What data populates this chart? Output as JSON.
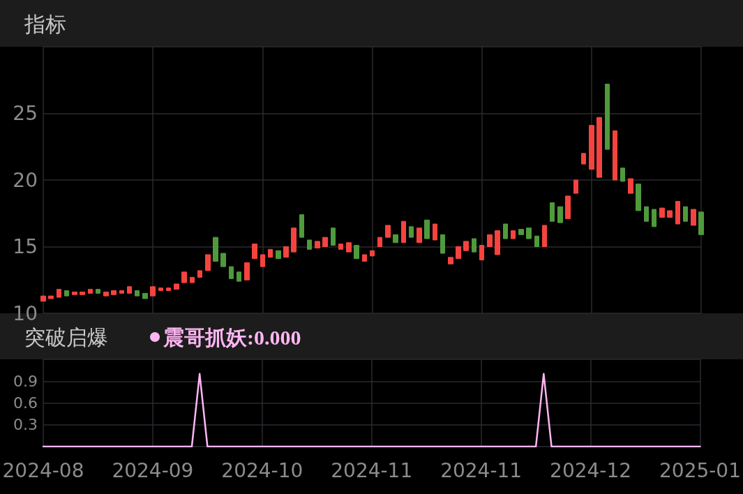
{
  "chart_data": [
    {
      "type": "candlestick",
      "title": "指标",
      "categories": [
        "2024-08",
        null,
        null,
        null,
        null,
        null,
        null,
        null,
        null,
        null,
        null,
        null,
        null,
        null,
        "2024-09",
        null,
        null,
        null,
        null,
        null,
        null,
        null,
        null,
        null,
        null,
        null,
        null,
        null,
        "2024-10",
        null,
        null,
        null,
        null,
        null,
        null,
        null,
        null,
        null,
        null,
        null,
        null,
        null,
        "2024-11",
        null,
        null,
        null,
        null,
        null,
        null,
        null,
        null,
        null,
        null,
        null,
        null,
        null,
        "2024-11",
        null,
        null,
        null,
        null,
        null,
        null,
        null,
        null,
        null,
        null,
        null,
        null,
        null,
        "2024-12",
        null,
        null,
        null,
        null,
        null,
        null,
        null,
        null,
        null,
        null,
        null,
        null,
        null,
        "2025-01"
      ],
      "ohlc": [
        [
          10.9,
          11.3,
          10.9,
          11.3
        ],
        [
          11.1,
          11.3,
          11.1,
          11.3
        ],
        [
          11.2,
          11.8,
          11.2,
          11.8
        ],
        [
          11.7,
          11.7,
          11.3,
          11.3
        ],
        [
          11.4,
          11.6,
          11.4,
          11.6
        ],
        [
          11.4,
          11.6,
          11.4,
          11.6
        ],
        [
          11.5,
          11.8,
          11.5,
          11.8
        ],
        [
          11.8,
          11.8,
          11.5,
          11.5
        ],
        [
          11.3,
          11.6,
          11.3,
          11.6
        ],
        [
          11.4,
          11.7,
          11.4,
          11.7
        ],
        [
          11.5,
          11.7,
          11.5,
          11.7
        ],
        [
          11.5,
          12.0,
          11.5,
          12.0
        ],
        [
          11.7,
          11.7,
          11.3,
          11.3
        ],
        [
          11.5,
          11.5,
          11.1,
          11.1
        ],
        [
          11.3,
          12.0,
          11.3,
          12.0
        ],
        [
          11.7,
          11.9,
          11.7,
          11.9
        ],
        [
          11.7,
          11.9,
          11.7,
          11.9
        ],
        [
          11.8,
          12.2,
          11.8,
          12.2
        ],
        [
          12.3,
          13.1,
          12.3,
          13.1
        ],
        [
          12.3,
          12.7,
          12.3,
          12.7
        ],
        [
          12.7,
          13.2,
          12.7,
          13.2
        ],
        [
          13.2,
          14.4,
          13.2,
          14.4
        ],
        [
          15.7,
          15.7,
          13.9,
          13.9
        ],
        [
          14.5,
          14.5,
          13.5,
          13.5
        ],
        [
          13.5,
          13.5,
          12.6,
          12.6
        ],
        [
          13.1,
          13.1,
          12.4,
          12.4
        ],
        [
          12.5,
          13.8,
          12.5,
          13.8
        ],
        [
          14.1,
          15.2,
          14.1,
          15.2
        ],
        [
          13.5,
          14.4,
          13.5,
          14.4
        ],
        [
          14.2,
          14.8,
          14.2,
          14.8
        ],
        [
          14.7,
          14.7,
          14.1,
          14.1
        ],
        [
          14.2,
          15.0,
          14.2,
          15.0
        ],
        [
          14.6,
          16.4,
          14.6,
          16.4
        ],
        [
          17.4,
          17.4,
          15.7,
          15.7
        ],
        [
          15.5,
          15.5,
          14.8,
          14.8
        ],
        [
          14.9,
          15.4,
          14.9,
          15.4
        ],
        [
          15.0,
          15.7,
          15.0,
          15.7
        ],
        [
          16.4,
          16.4,
          15.1,
          15.1
        ],
        [
          14.8,
          15.2,
          14.8,
          15.2
        ],
        [
          14.6,
          15.3,
          14.6,
          15.3
        ],
        [
          15.1,
          15.1,
          14.1,
          14.1
        ],
        [
          13.9,
          14.4,
          13.9,
          14.4
        ],
        [
          14.3,
          14.7,
          14.3,
          14.7
        ],
        [
          15.0,
          15.7,
          15.0,
          15.7
        ],
        [
          15.7,
          16.6,
          15.7,
          16.6
        ],
        [
          15.9,
          15.9,
          15.3,
          15.3
        ],
        [
          15.3,
          16.9,
          15.3,
          16.9
        ],
        [
          16.5,
          16.5,
          15.7,
          15.7
        ],
        [
          15.3,
          16.4,
          15.3,
          16.4
        ],
        [
          17.0,
          17.0,
          15.6,
          15.6
        ],
        [
          15.5,
          16.7,
          15.5,
          16.7
        ],
        [
          15.9,
          15.9,
          14.5,
          14.5
        ],
        [
          13.7,
          14.2,
          13.7,
          14.2
        ],
        [
          14.1,
          15.0,
          14.1,
          15.0
        ],
        [
          14.7,
          15.4,
          14.7,
          15.4
        ],
        [
          15.6,
          15.6,
          14.6,
          14.6
        ],
        [
          14.0,
          15.1,
          14.0,
          15.1
        ],
        [
          15.0,
          15.9,
          15.0,
          15.9
        ],
        [
          14.4,
          16.2,
          14.4,
          16.2
        ],
        [
          16.7,
          16.7,
          15.6,
          15.6
        ],
        [
          15.6,
          16.2,
          15.6,
          16.2
        ],
        [
          16.3,
          16.3,
          15.9,
          15.9
        ],
        [
          16.4,
          16.4,
          15.6,
          15.6
        ],
        [
          15.8,
          15.8,
          15.0,
          15.0
        ],
        [
          15.0,
          16.6,
          15.0,
          16.6
        ],
        [
          18.3,
          18.3,
          16.9,
          16.9
        ],
        [
          18.0,
          18.0,
          16.8,
          16.8
        ],
        [
          17.1,
          18.8,
          17.1,
          18.8
        ],
        [
          19.0,
          20.0,
          19.0,
          20.0
        ],
        [
          21.2,
          22.0,
          21.2,
          22.0
        ],
        [
          20.8,
          24.1,
          20.8,
          24.1
        ],
        [
          20.2,
          24.7,
          20.2,
          24.7
        ],
        [
          27.2,
          27.2,
          22.3,
          22.3
        ],
        [
          20.0,
          23.7,
          20.0,
          23.7
        ],
        [
          20.9,
          20.9,
          19.9,
          19.9
        ],
        [
          19.0,
          20.1,
          19.0,
          20.1
        ],
        [
          19.7,
          19.7,
          17.7,
          17.7
        ],
        [
          18.0,
          18.0,
          16.9,
          16.9
        ],
        [
          17.8,
          17.8,
          16.5,
          16.5
        ],
        [
          17.2,
          17.9,
          17.2,
          17.9
        ],
        [
          17.2,
          17.7,
          17.2,
          17.7
        ],
        [
          16.7,
          18.4,
          16.7,
          18.4
        ],
        [
          18.0,
          18.0,
          16.9,
          16.9
        ],
        [
          16.6,
          17.8,
          16.6,
          17.8
        ],
        [
          17.6,
          17.6,
          15.9,
          15.9
        ]
      ],
      "colors": [
        "#f5443f",
        "#f5443f",
        "#f5443f",
        "#4f9a3c",
        "#f5443f",
        "#f5443f",
        "#f5443f",
        "#4f9a3c",
        "#f5443f",
        "#f5443f",
        "#f5443f",
        "#f5443f",
        "#4f9a3c",
        "#4f9a3c",
        "#f5443f",
        "#f5443f",
        "#f5443f",
        "#f5443f",
        "#f5443f",
        "#f5443f",
        "#f5443f",
        "#f5443f",
        "#4f9a3c",
        "#4f9a3c",
        "#4f9a3c",
        "#4f9a3c",
        "#f5443f",
        "#f5443f",
        "#f5443f",
        "#f5443f",
        "#4f9a3c",
        "#f5443f",
        "#f5443f",
        "#4f9a3c",
        "#4f9a3c",
        "#f5443f",
        "#f5443f",
        "#4f9a3c",
        "#f5443f",
        "#f5443f",
        "#4f9a3c",
        "#f5443f",
        "#f5443f",
        "#f5443f",
        "#f5443f",
        "#4f9a3c",
        "#f5443f",
        "#4f9a3c",
        "#f5443f",
        "#4f9a3c",
        "#f5443f",
        "#4f9a3c",
        "#f5443f",
        "#f5443f",
        "#f5443f",
        "#4f9a3c",
        "#f5443f",
        "#f5443f",
        "#f5443f",
        "#4f9a3c",
        "#f5443f",
        "#4f9a3c",
        "#4f9a3c",
        "#4f9a3c",
        "#f5443f",
        "#4f9a3c",
        "#4f9a3c",
        "#f5443f",
        "#f5443f",
        "#f5443f",
        "#f5443f",
        "#f5443f",
        "#4f9a3c",
        "#f5443f",
        "#4f9a3c",
        "#f5443f",
        "#4f9a3c",
        "#4f9a3c",
        "#4f9a3c",
        "#f5443f",
        "#f5443f",
        "#f5443f",
        "#4f9a3c",
        "#f5443f",
        "#4f9a3c"
      ],
      "ylim": [
        10,
        30
      ],
      "yticks": [
        10,
        15,
        20,
        25
      ],
      "grid": true,
      "tick_labels": "y"
    },
    {
      "type": "line",
      "title": "突破启爆",
      "categories": [
        "2024-08",
        null,
        null,
        null,
        null,
        null,
        null,
        null,
        null,
        null,
        null,
        null,
        null,
        null,
        "2024-09",
        null,
        null,
        null,
        null,
        null,
        null,
        null,
        null,
        null,
        null,
        null,
        null,
        null,
        "2024-10",
        null,
        null,
        null,
        null,
        null,
        null,
        null,
        null,
        null,
        null,
        null,
        null,
        null,
        "2024-11",
        null,
        null,
        null,
        null,
        null,
        null,
        null,
        null,
        null,
        null,
        null,
        null,
        null,
        "2024-11",
        null,
        null,
        null,
        null,
        null,
        null,
        null,
        null,
        null,
        null,
        null,
        null,
        null,
        "2024-12",
        null,
        null,
        null,
        null,
        null,
        null,
        null,
        null,
        null,
        null,
        null,
        null,
        null,
        "2025-01"
      ],
      "series": [
        {
          "name": "震哥抓妖:0.000",
          "color": "#ffb6f3",
          "values": [
            0,
            0,
            0,
            0,
            0,
            0,
            0,
            0,
            0,
            0,
            0,
            0,
            0,
            0,
            0,
            0,
            0,
            0,
            0,
            0,
            1,
            0,
            0,
            0,
            0,
            0,
            0,
            0,
            0,
            0,
            0,
            0,
            0,
            0,
            0,
            0,
            0,
            0,
            0,
            0,
            0,
            0,
            0,
            0,
            0,
            0,
            0,
            0,
            0,
            0,
            0,
            0,
            0,
            0,
            0,
            0,
            0,
            0,
            0,
            0,
            0,
            0,
            0,
            0,
            1,
            0,
            0,
            0,
            0,
            0,
            0,
            0,
            0,
            0,
            0,
            0,
            0,
            0,
            0,
            0,
            0,
            0,
            0,
            0,
            0
          ]
        }
      ],
      "ylim": [
        0,
        1.2
      ],
      "yticks": [
        {
          "value": 0,
          "label": null
        },
        0.3,
        0.6,
        0.9
      ],
      "grid": true,
      "legend": "top left",
      "marker": "none"
    }
  ]
}
